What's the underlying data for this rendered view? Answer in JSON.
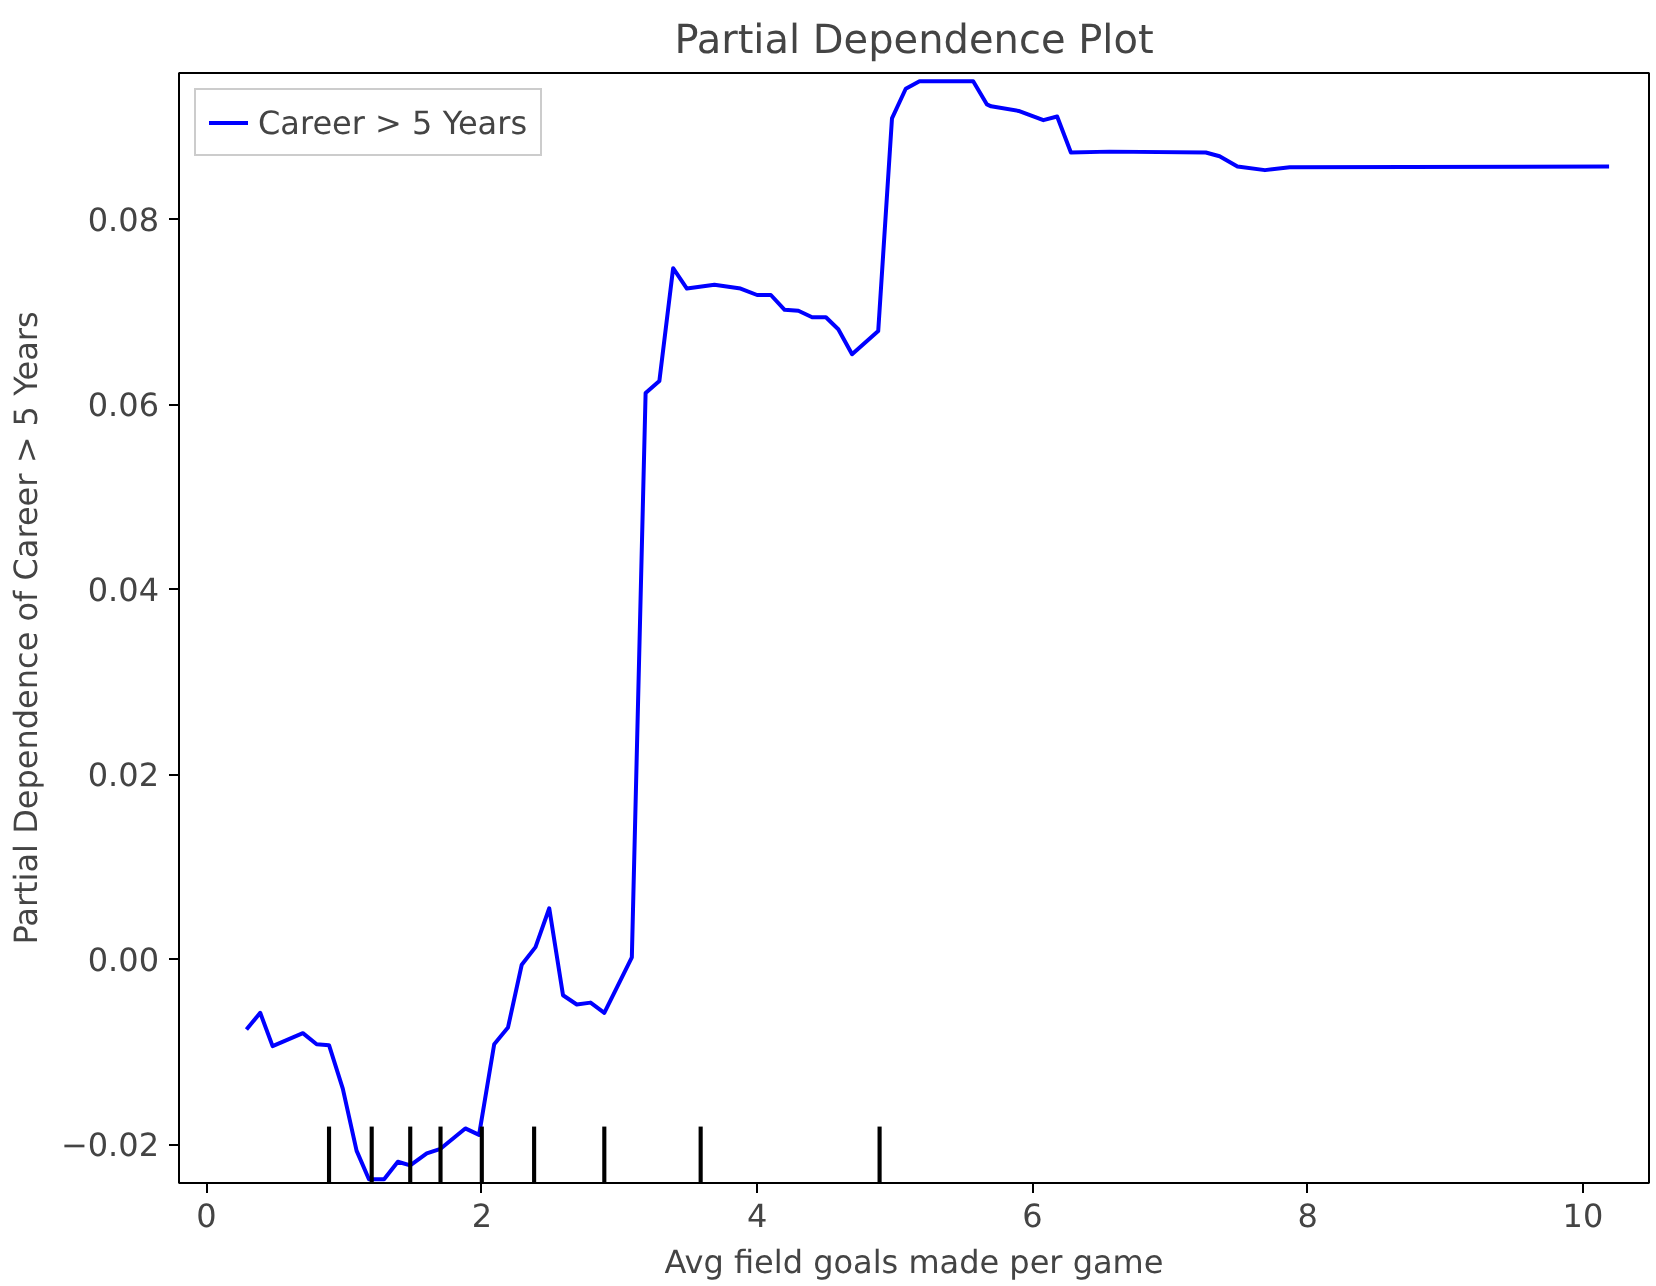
{
  "chart_data": {
    "type": "line",
    "title": "Partial Dependence Plot",
    "xlabel": "Avg field goals made per game",
    "ylabel": "Partial Dependence of Career > 5 Years",
    "xlim": [
      -0.2,
      10.48
    ],
    "ylim": [
      -0.0242,
      0.0958
    ],
    "xticks": [
      0,
      2,
      4,
      6,
      8,
      10
    ],
    "yticks": [
      {
        "value": -0.02,
        "label": "−0.02"
      },
      {
        "value": 0,
        "label": "0.00"
      },
      {
        "value": 0.02,
        "label": "0.02"
      },
      {
        "value": 0.04,
        "label": "0.04"
      },
      {
        "value": 0.06,
        "label": "0.06"
      },
      {
        "value": 0.08,
        "label": "0.08"
      }
    ],
    "grid": false,
    "legend": "top left",
    "series": [
      {
        "name": "Career > 5 Years",
        "color": "#0000ff",
        "marker": "none",
        "x": [
          0.29,
          0.39,
          0.48,
          0.7,
          0.8,
          0.89,
          0.99,
          1.09,
          1.18,
          1.29,
          1.39,
          1.48,
          1.6,
          1.7,
          1.88,
          1.98,
          2.09,
          2.19,
          2.29,
          2.39,
          2.49,
          2.59,
          2.69,
          2.79,
          2.89,
          3.09,
          3.19,
          3.29,
          3.39,
          3.49,
          3.69,
          3.88,
          4.0,
          4.1,
          4.2,
          4.3,
          4.4,
          4.5,
          4.59,
          4.69,
          4.88,
          4.98,
          5.08,
          5.18,
          5.57,
          5.67,
          5.7,
          5.9,
          6.08,
          6.18,
          6.28,
          6.56,
          7.26,
          7.36,
          7.49,
          7.69,
          7.87,
          10.19
        ],
        "values": [
          -0.0076,
          -0.0058,
          -0.0094,
          -0.008,
          -0.0092,
          -0.0093,
          -0.014,
          -0.0207,
          -0.0238,
          -0.0238,
          -0.0219,
          -0.0223,
          -0.021,
          -0.0205,
          -0.0183,
          -0.019,
          -0.0092,
          -0.0074,
          -0.0006,
          0.0013,
          0.0055,
          -0.0039,
          -0.0049,
          -0.0047,
          -0.0058,
          0.0002,
          0.0612,
          0.0625,
          0.0747,
          0.0725,
          0.0729,
          0.0725,
          0.0718,
          0.0718,
          0.0702,
          0.0701,
          0.0694,
          0.0694,
          0.0681,
          0.0654,
          0.0679,
          0.0909,
          0.0941,
          0.0949,
          0.0949,
          0.0924,
          0.0922,
          0.0917,
          0.0907,
          0.0911,
          0.0872,
          0.0873,
          0.0872,
          0.0868,
          0.0857,
          0.0853,
          0.0856,
          0.0857
        ]
      },
      {
        "color": "#000000",
        "type": "bar",
        "x": [
          0.89,
          1.2,
          1.48,
          1.7,
          2.0,
          2.38,
          2.89,
          3.59,
          4.89
        ],
        "base": [
          -0.0242,
          -0.0242,
          -0.0242,
          -0.0242,
          -0.0242,
          -0.0242,
          -0.0242,
          -0.0242,
          -0.0242
        ],
        "values": [
          0.0061,
          0.0061,
          0.0061,
          0.0061,
          0.0061,
          0.0061,
          0.0061,
          0.0061,
          0.0061
        ]
      }
    ]
  }
}
